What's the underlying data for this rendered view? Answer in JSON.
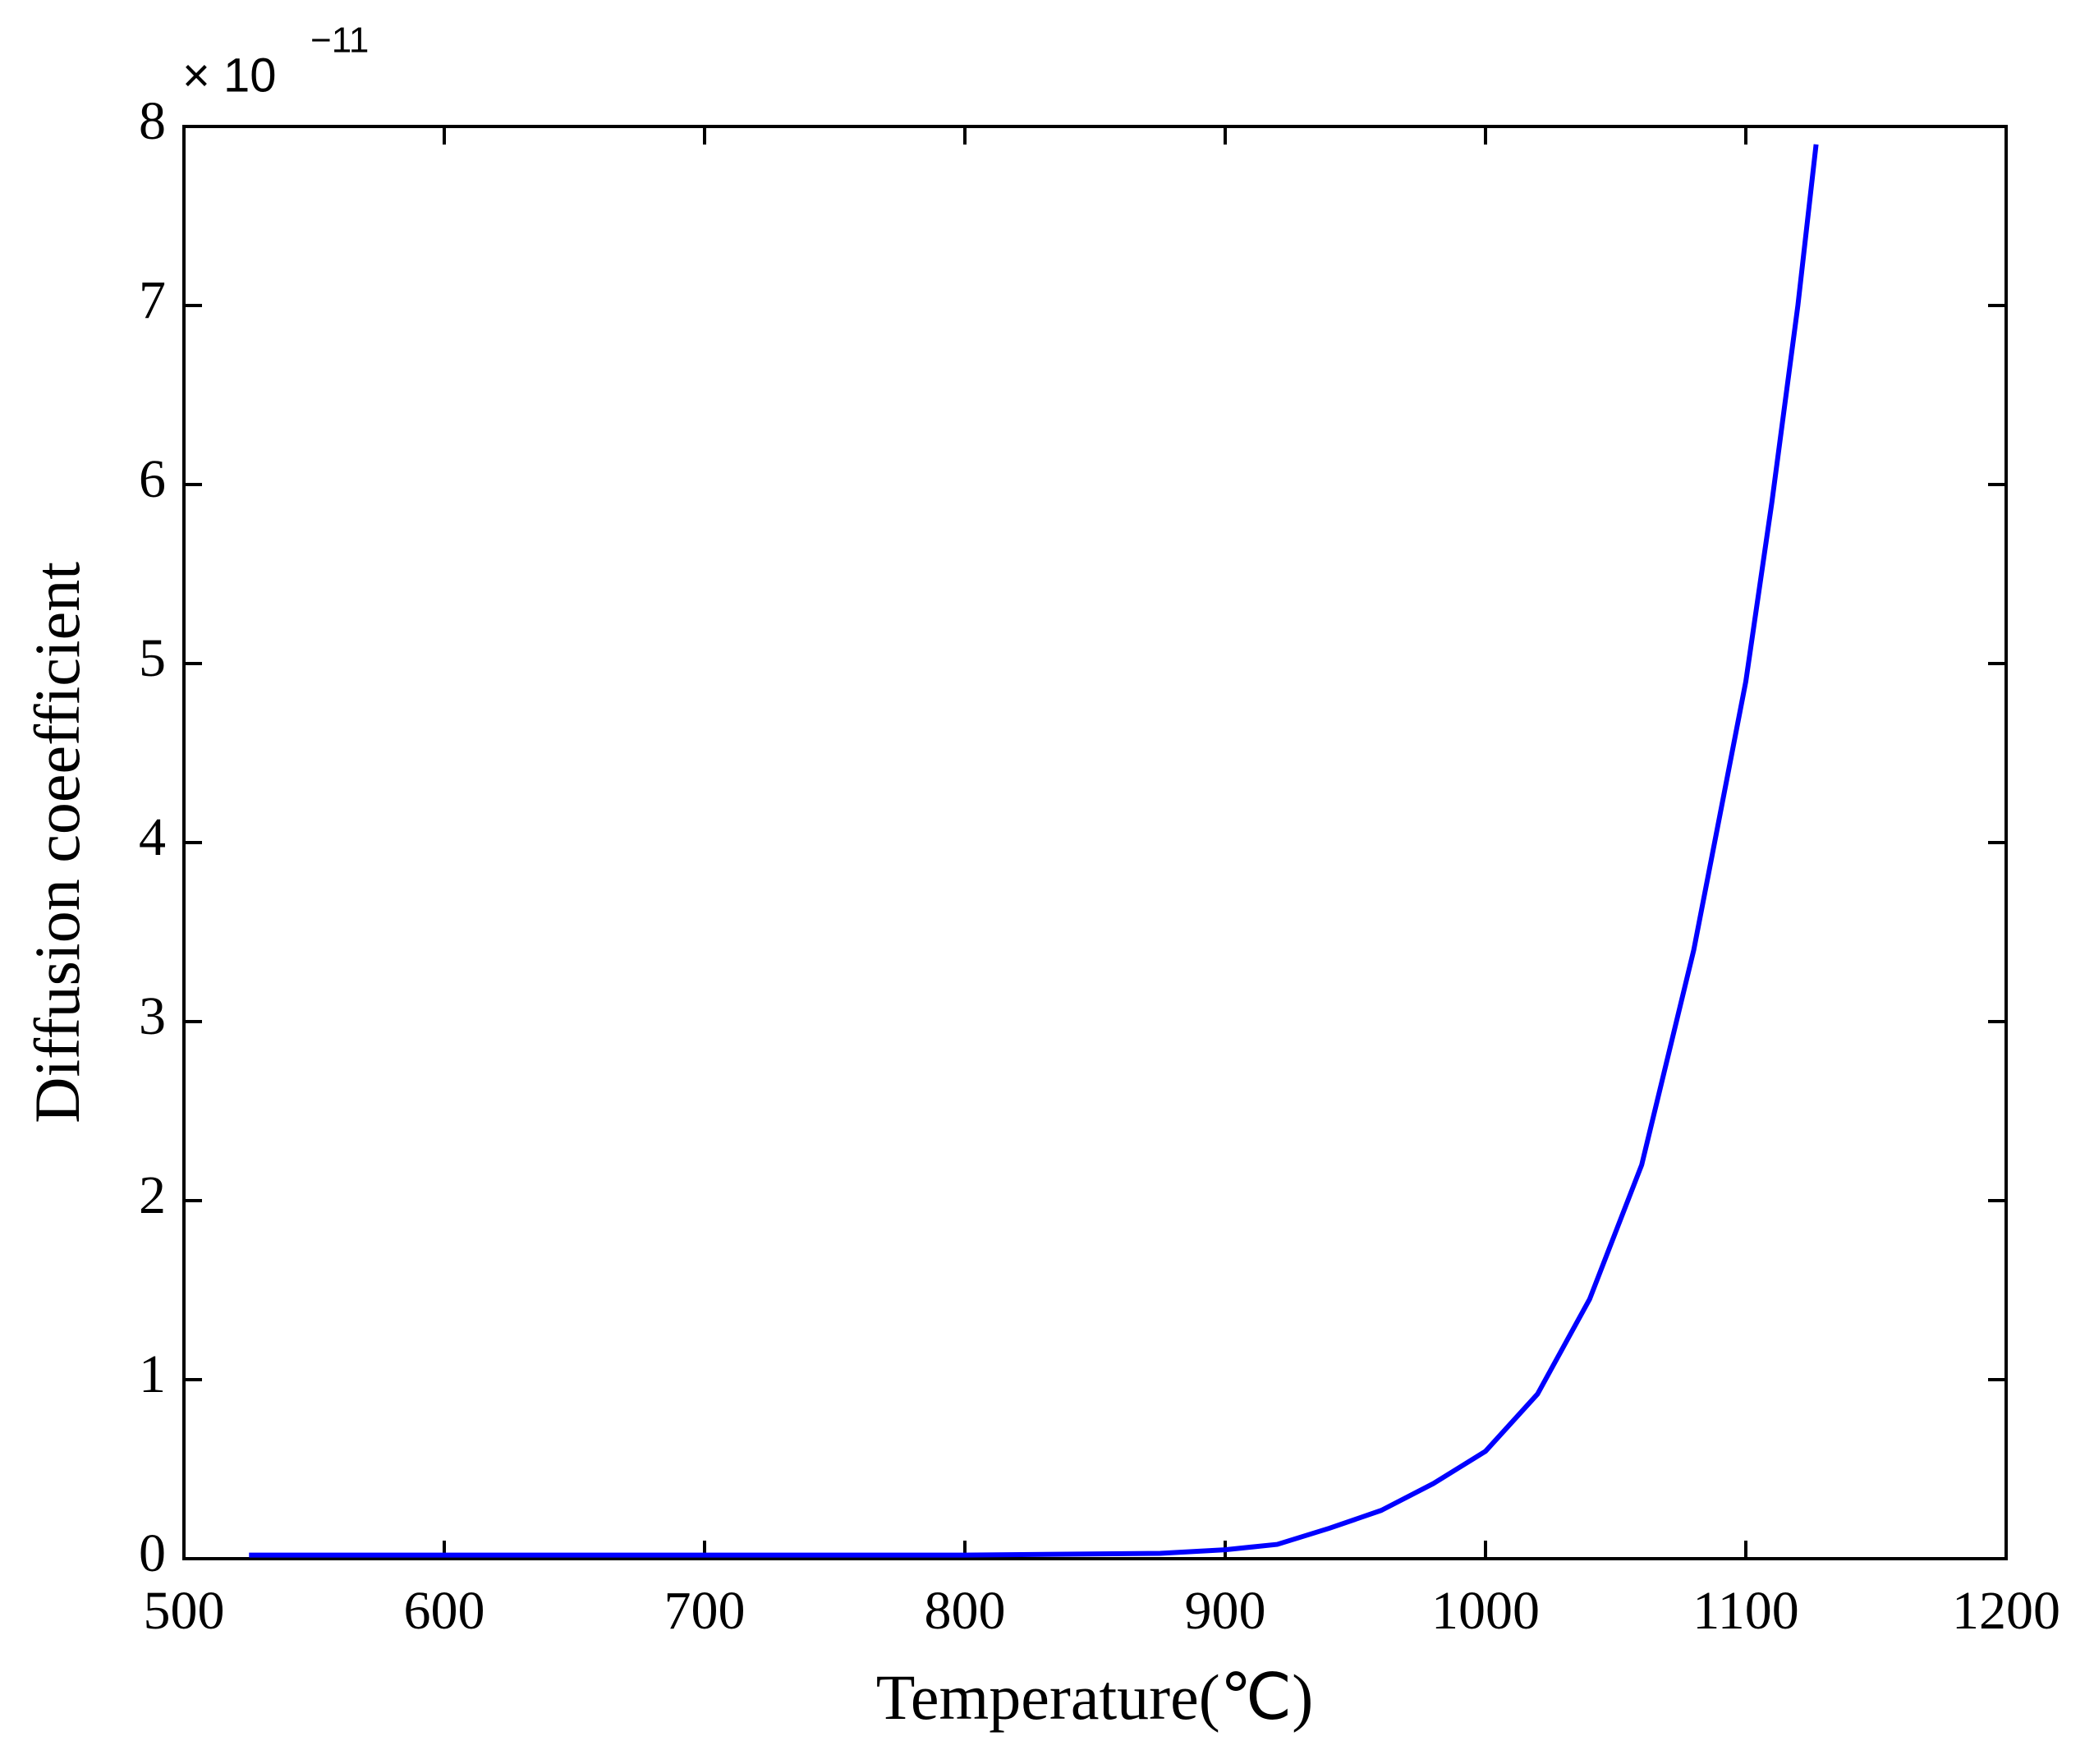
{
  "chart_data": {
    "type": "line",
    "x_label": "Temperature(℃)",
    "y_label": "Diffusion coeefficient",
    "y_exponent": {
      "base": "× 10",
      "power": "−11"
    },
    "xlim": [
      500,
      1200
    ],
    "xticks": [
      500,
      600,
      700,
      800,
      900,
      1000,
      1100,
      1200
    ],
    "ylim": [
      0,
      8
    ],
    "yticks": [
      0,
      1,
      2,
      3,
      4,
      5,
      6,
      7,
      8
    ],
    "grid": false,
    "x": [
      525,
      600,
      700,
      800,
      875,
      900,
      920,
      940,
      960,
      980,
      1000,
      1020,
      1040,
      1060,
      1080,
      1100,
      1110,
      1120,
      1127
    ],
    "series": [
      {
        "color": "#0000ff",
        "values": [
          0.02,
          0.02,
          0.02,
          0.02,
          0.03,
          0.05,
          0.08,
          0.17,
          0.27,
          0.42,
          0.6,
          0.92,
          1.45,
          2.2,
          3.4,
          4.9,
          5.9,
          7.0,
          7.9
        ]
      }
    ]
  }
}
